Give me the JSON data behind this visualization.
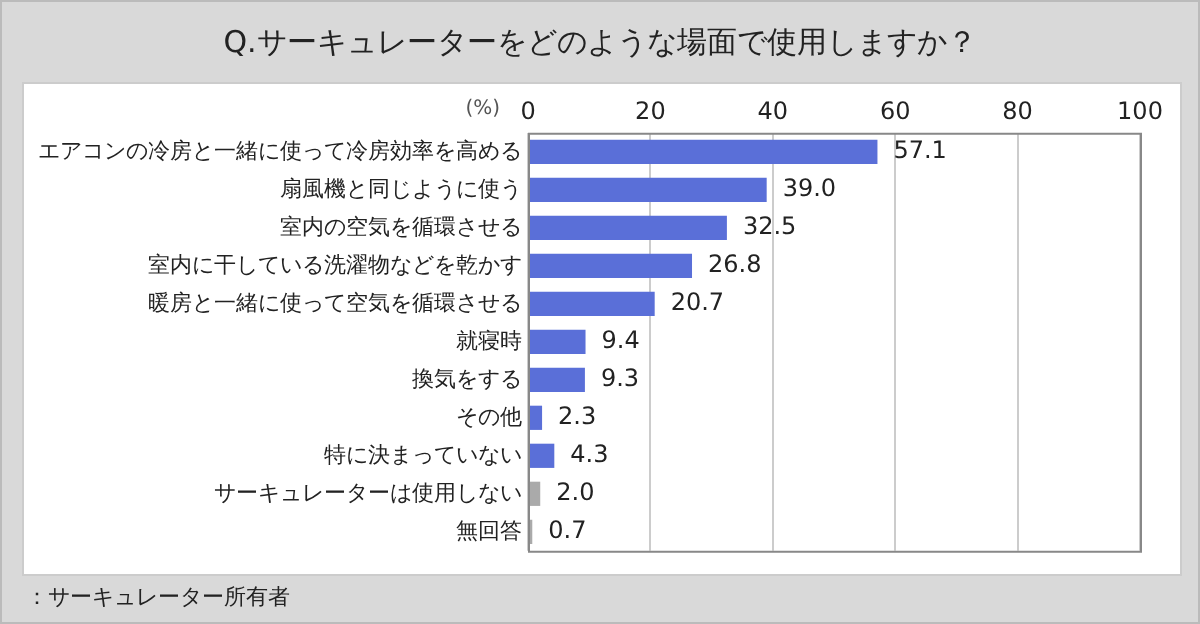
{
  "chart_data": {
    "type": "bar",
    "orientation": "horizontal",
    "title": "Q.サーキュレーターをどのような場面で使用しますか？",
    "xlabel": "(%)",
    "categories": [
      "エアコンの冷房と一緒に使って冷房効率を高める",
      "扇風機と同じように使う",
      "室内の空気を循環させる",
      "室内に干している洗濯物などを乾かす",
      "暖房と一緒に使って空気を循環させる",
      "就寝時",
      "換気をする",
      "その他",
      "特に決まっていない",
      "サーキュレーターは使用しない",
      "無回答"
    ],
    "values": [
      57.1,
      39.0,
      32.5,
      26.8,
      20.7,
      9.4,
      9.3,
      2.3,
      4.3,
      2.0,
      0.7
    ],
    "value_labels": [
      "57.1",
      "39.0",
      "32.5",
      "26.8",
      "20.7",
      "9.4",
      "9.3",
      "2.3",
      "4.3",
      "2.0",
      "0.7"
    ],
    "colors": [
      "#5a6fd8",
      "#5a6fd8",
      "#5a6fd8",
      "#5a6fd8",
      "#5a6fd8",
      "#5a6fd8",
      "#5a6fd8",
      "#5a6fd8",
      "#5a6fd8",
      "#aaaaaa",
      "#aaaaaa"
    ],
    "xlim": [
      0,
      100
    ],
    "xticks": [
      0,
      20,
      40,
      60,
      80,
      100
    ],
    "grid": "x",
    "annotations": [
      "：サーキュレーター所有者"
    ]
  }
}
